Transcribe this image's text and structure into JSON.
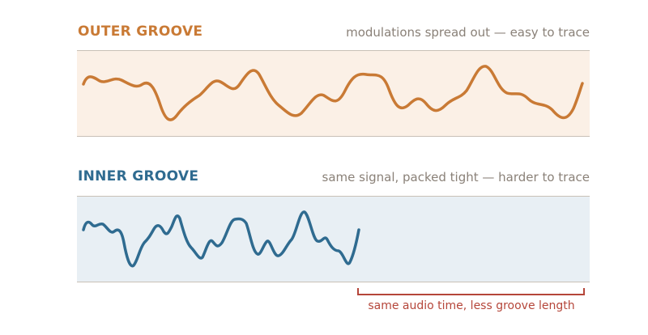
{
  "outer": {
    "title": "OUTER GROOVE",
    "note": "modulations spread out — easy to trace",
    "color": "#c97a35"
  },
  "inner": {
    "title": "INNER GROOVE",
    "note": "same signal, packed tight — harder to trace",
    "color": "#2f6b90"
  },
  "annotation": {
    "label": "same audio time, less groove length",
    "color": "#b5463a"
  }
}
